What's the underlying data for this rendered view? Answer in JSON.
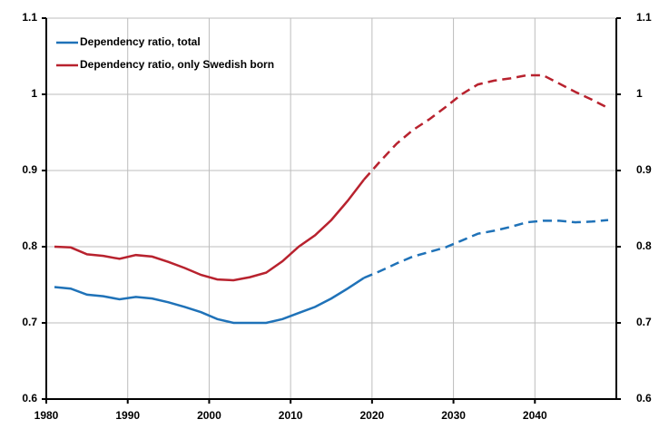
{
  "chart_data": {
    "type": "line",
    "x": [
      1981,
      1983,
      1985,
      1987,
      1989,
      1991,
      1993,
      1995,
      1997,
      1999,
      2001,
      2003,
      2005,
      2007,
      2009,
      2011,
      2013,
      2015,
      2017,
      2019,
      2021,
      2023,
      2025,
      2027,
      2029,
      2031,
      2033,
      2035,
      2037,
      2039,
      2041,
      2043,
      2045,
      2047,
      2049
    ],
    "series": [
      {
        "name": "Dependency ratio, total",
        "color": "#1f72b8",
        "values": [
          0.747,
          0.745,
          0.737,
          0.735,
          0.731,
          0.734,
          0.732,
          0.727,
          0.721,
          0.714,
          0.705,
          0.7,
          0.7,
          0.7,
          0.705,
          0.713,
          0.721,
          0.732,
          0.745,
          0.759,
          null,
          null,
          null,
          null,
          null,
          null,
          null,
          null,
          null,
          null,
          null,
          null,
          null,
          null,
          null
        ],
        "projection_values": [
          null,
          null,
          null,
          null,
          null,
          null,
          null,
          null,
          null,
          null,
          null,
          null,
          null,
          null,
          null,
          null,
          null,
          null,
          null,
          0.759,
          0.768,
          0.778,
          0.787,
          0.793,
          0.799,
          0.808,
          0.817,
          0.821,
          0.826,
          0.832,
          0.834,
          0.834,
          0.832,
          0.833,
          0.835
        ]
      },
      {
        "name": "Dependency ratio, only Swedish born",
        "color": "#b8222e",
        "values": [
          0.8,
          0.799,
          0.79,
          0.788,
          0.784,
          0.789,
          0.787,
          0.78,
          0.772,
          0.763,
          0.757,
          0.756,
          0.76,
          0.766,
          0.781,
          0.8,
          0.815,
          0.835,
          0.86,
          0.888,
          null,
          null,
          null,
          null,
          null,
          null,
          null,
          null,
          null,
          null,
          null,
          null,
          null,
          null,
          null
        ],
        "projection_values": [
          null,
          null,
          null,
          null,
          null,
          null,
          null,
          null,
          null,
          null,
          null,
          null,
          null,
          null,
          null,
          null,
          null,
          null,
          null,
          0.888,
          0.912,
          0.935,
          0.953,
          0.967,
          0.983,
          1.0,
          1.013,
          1.018,
          1.021,
          1.025,
          1.025,
          1.014,
          1.003,
          0.993,
          0.982
        ]
      }
    ],
    "xlim": [
      1980,
      2050
    ],
    "xticks": [
      1980,
      1990,
      2000,
      2010,
      2020,
      2030,
      2040
    ],
    "ylim": [
      0.6,
      1.1
    ],
    "yticks": [
      0.6,
      0.7,
      0.8,
      0.9,
      1,
      1.1
    ],
    "grid": true
  }
}
